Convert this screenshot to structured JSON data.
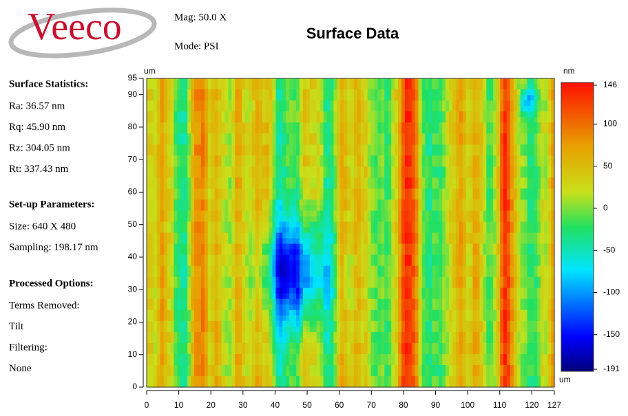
{
  "header": {
    "logo": "Veeco",
    "mag": "Mag:  50.0 X",
    "mode": "Mode:  PSI",
    "title": "Surface Data"
  },
  "sections": [
    {
      "title": "Surface Statistics:",
      "lines": [
        "Ra:  36.57 nm",
        "Rq:  45.90 nm",
        "Rz:  304.05 nm",
        "Rt:  337.43 nm"
      ]
    },
    {
      "title": "Set-up Parameters:",
      "lines": [
        "Size: 640 X 480",
        "Sampling:  198.17 nm"
      ]
    },
    {
      "title": "Processed Options:",
      "lines": [
        "Terms Removed:",
        "Tilt",
        "Filtering:",
        "None"
      ]
    }
  ],
  "plot": {
    "x_unit": "um",
    "y_unit": "um",
    "xlim": [
      0,
      127
    ],
    "ylim": [
      0,
      95
    ],
    "xticks": [
      0,
      10,
      20,
      30,
      40,
      50,
      60,
      70,
      80,
      90,
      100,
      110,
      120,
      127
    ],
    "yticks": [
      0,
      10,
      20,
      30,
      40,
      50,
      60,
      70,
      80,
      90,
      95
    ]
  },
  "colorbar": {
    "unit": "nm",
    "lim": [
      -191,
      146
    ],
    "ticks": [
      146,
      100,
      50,
      0,
      -50,
      -100,
      -150,
      -191
    ]
  }
}
